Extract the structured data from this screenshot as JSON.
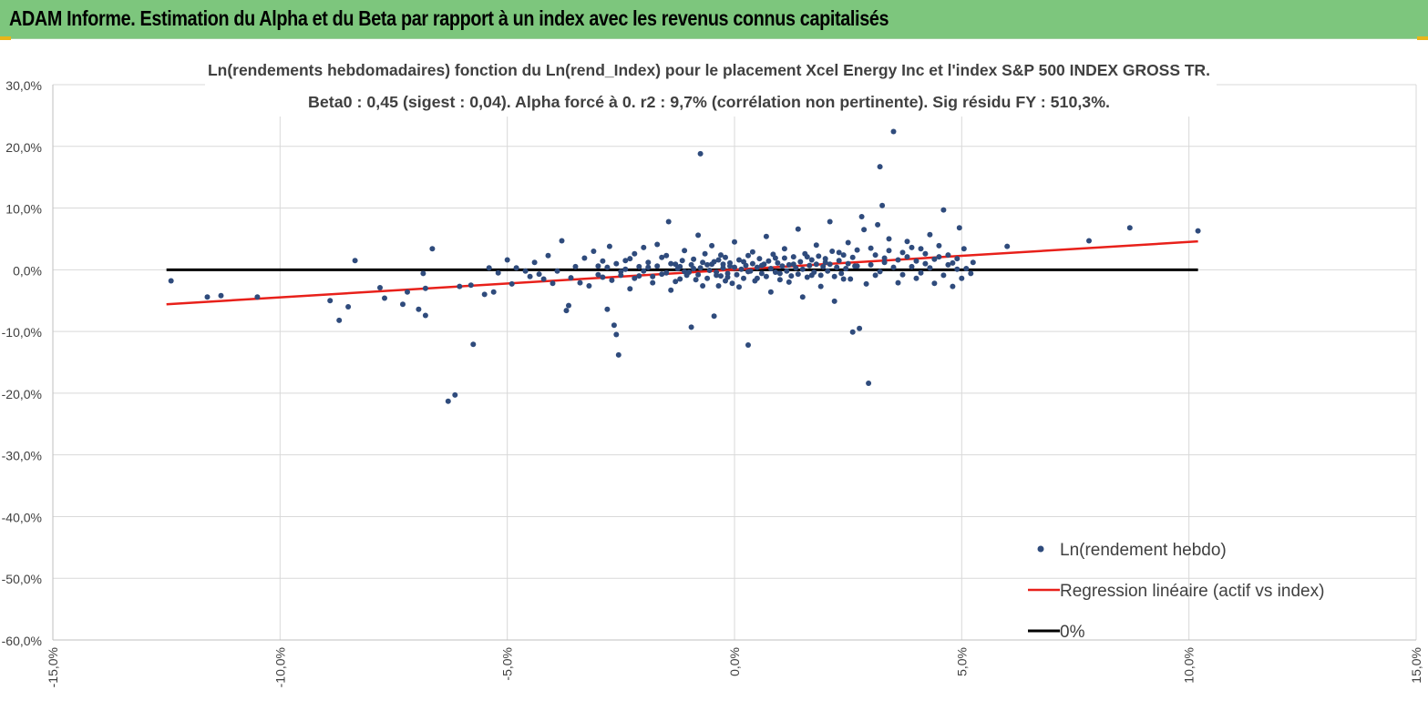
{
  "report_title": "ADAM Informe. Estimation du Alpha et du Beta par rapport à un index avec les revenus connus capitalisés",
  "colors": {
    "banner": "#7dc67d",
    "points": "#2f4b7c",
    "regression": "#e8201a",
    "zero_line": "#000000",
    "grid": "#d9d9d9"
  },
  "chart_data": {
    "type": "scatter",
    "title": "Ln(rendements hebdomadaires) fonction du Ln(rend_Index) pour le placement Xcel Energy Inc et l'index S&P 500 INDEX GROSS TR.",
    "subtitle": "Beta0 : 0,45 (sigest : 0,04).  Alpha forcé à 0. r2 : 9,7% (corrélation non pertinente). Sig résidu FY : 510,3%.",
    "xlim": [
      -15,
      15
    ],
    "ylim": [
      -60,
      30
    ],
    "x_ticks": [
      -15,
      -10,
      -5,
      0,
      5,
      10,
      15
    ],
    "y_ticks": [
      30,
      20,
      10,
      0,
      -10,
      -20,
      -30,
      -40,
      -50,
      -60
    ],
    "x_tick_labels": [
      "-15,0%",
      "-10,0%",
      "-5,0%",
      "0,0%",
      "5,0%",
      "10,0%",
      "15,0%"
    ],
    "y_tick_labels": [
      "30,0%",
      "20,0%",
      "10,0%",
      "0,0%",
      "-10,0%",
      "-20,0%",
      "-30,0%",
      "-40,0%",
      "-50,0%",
      "-60,0%"
    ],
    "grid": true,
    "legend_position": "bottom-right",
    "series": [
      {
        "name": "Ln(rendement hebdo)",
        "kind": "scatter",
        "points": [
          [
            -12.4,
            -1.8
          ],
          [
            -11.6,
            -4.4
          ],
          [
            -11.3,
            -4.2
          ],
          [
            -10.5,
            -4.4
          ],
          [
            -8.9,
            -5.0
          ],
          [
            -8.7,
            -8.2
          ],
          [
            -8.5,
            -6.0
          ],
          [
            -8.35,
            1.5
          ],
          [
            -7.8,
            -2.9
          ],
          [
            -7.7,
            -4.6
          ],
          [
            -7.3,
            -5.6
          ],
          [
            -7.2,
            -3.6
          ],
          [
            -6.95,
            -6.4
          ],
          [
            -6.85,
            -0.6
          ],
          [
            -6.8,
            -7.4
          ],
          [
            -6.8,
            -3.0
          ],
          [
            -6.65,
            3.4
          ],
          [
            -6.3,
            -21.3
          ],
          [
            -6.15,
            -20.3
          ],
          [
            -6.05,
            -2.7
          ],
          [
            -5.8,
            -2.5
          ],
          [
            -5.75,
            -12.1
          ],
          [
            -5.5,
            -4.0
          ],
          [
            -5.4,
            0.3
          ],
          [
            -5.3,
            -3.6
          ],
          [
            -5.2,
            -0.5
          ],
          [
            -5.0,
            1.6
          ],
          [
            -4.9,
            -2.3
          ],
          [
            -4.8,
            0.3
          ],
          [
            -4.6,
            -0.2
          ],
          [
            -4.5,
            -1.1
          ],
          [
            -4.4,
            1.2
          ],
          [
            -4.3,
            -0.7
          ],
          [
            -4.2,
            -1.5
          ],
          [
            -4.1,
            2.3
          ],
          [
            -4.0,
            -2.2
          ],
          [
            -3.9,
            -0.2
          ],
          [
            -3.8,
            4.7
          ],
          [
            -3.7,
            -6.6
          ],
          [
            -3.65,
            -5.8
          ],
          [
            -3.6,
            -1.3
          ],
          [
            -3.5,
            0.5
          ],
          [
            -3.4,
            -2.1
          ],
          [
            -3.3,
            1.9
          ],
          [
            -3.2,
            -2.6
          ],
          [
            -3.1,
            3.0
          ],
          [
            -3.0,
            -0.8
          ],
          [
            -2.9,
            1.4
          ],
          [
            -2.8,
            -6.4
          ],
          [
            -2.75,
            3.8
          ],
          [
            -2.65,
            -9.0
          ],
          [
            -2.6,
            -10.5
          ],
          [
            -2.55,
            -13.8
          ],
          [
            -2.5,
            -0.3
          ],
          [
            -2.4,
            1.5
          ],
          [
            -2.3,
            -3.1
          ],
          [
            -2.2,
            2.6
          ],
          [
            -2.1,
            -1.0
          ],
          [
            -2.0,
            3.6
          ],
          [
            -1.9,
            0.4
          ],
          [
            -1.8,
            -2.1
          ],
          [
            -1.7,
            4.1
          ],
          [
            -1.6,
            -0.7
          ],
          [
            -1.5,
            2.3
          ],
          [
            -1.45,
            7.8
          ],
          [
            -1.4,
            -3.3
          ],
          [
            -1.3,
            0.9
          ],
          [
            -1.2,
            -1.5
          ],
          [
            -1.1,
            3.1
          ],
          [
            -1.0,
            -0.4
          ],
          [
            -0.95,
            -9.3
          ],
          [
            -0.9,
            1.7
          ],
          [
            -0.8,
            5.6
          ],
          [
            -0.75,
            18.8
          ],
          [
            -0.7,
            -2.6
          ],
          [
            -0.6,
            0.8
          ],
          [
            -0.5,
            3.9
          ],
          [
            -0.45,
            -7.5
          ],
          [
            -0.4,
            -0.9
          ],
          [
            -0.3,
            2.4
          ],
          [
            -0.2,
            -1.8
          ],
          [
            -0.1,
            0.6
          ],
          [
            0.0,
            4.5
          ],
          [
            0.1,
            -2.8
          ],
          [
            0.2,
            1.3
          ],
          [
            0.3,
            -0.3
          ],
          [
            0.3,
            -12.2
          ],
          [
            0.4,
            2.9
          ],
          [
            0.5,
            -1.4
          ],
          [
            0.6,
            0.7
          ],
          [
            0.7,
            5.4
          ],
          [
            0.8,
            -3.6
          ],
          [
            0.9,
            1.9
          ],
          [
            1.0,
            -0.6
          ],
          [
            1.1,
            3.4
          ],
          [
            1.2,
            -2.0
          ],
          [
            1.3,
            0.9
          ],
          [
            1.4,
            6.6
          ],
          [
            1.5,
            -4.4
          ],
          [
            1.6,
            2.1
          ],
          [
            1.7,
            -0.9
          ],
          [
            1.8,
            4.0
          ],
          [
            1.9,
            -2.7
          ],
          [
            2.0,
            1.2
          ],
          [
            2.1,
            7.8
          ],
          [
            2.2,
            -5.1
          ],
          [
            2.3,
            2.8
          ],
          [
            2.4,
            -1.5
          ],
          [
            2.5,
            4.4
          ],
          [
            2.6,
            -10.1
          ],
          [
            2.7,
            0.6
          ],
          [
            2.75,
            -9.5
          ],
          [
            2.8,
            8.6
          ],
          [
            2.85,
            6.5
          ],
          [
            2.9,
            -2.3
          ],
          [
            2.95,
            -18.4
          ],
          [
            3.0,
            3.5
          ],
          [
            3.1,
            -0.9
          ],
          [
            3.15,
            7.3
          ],
          [
            3.2,
            16.7
          ],
          [
            3.25,
            10.4
          ],
          [
            3.3,
            1.9
          ],
          [
            3.4,
            5.0
          ],
          [
            3.5,
            22.4
          ],
          [
            3.6,
            -2.1
          ],
          [
            3.7,
            2.8
          ],
          [
            3.8,
            4.6
          ],
          [
            3.9,
            0.5
          ],
          [
            4.0,
            -1.4
          ],
          [
            4.1,
            3.4
          ],
          [
            4.2,
            1.0
          ],
          [
            4.3,
            5.7
          ],
          [
            4.4,
            -2.2
          ],
          [
            4.5,
            2.1
          ],
          [
            4.6,
            9.7
          ],
          [
            4.7,
            0.8
          ],
          [
            4.8,
            -2.7
          ],
          [
            4.9,
            1.8
          ],
          [
            4.95,
            6.8
          ],
          [
            5.0,
            -1.4
          ],
          [
            5.05,
            3.4
          ],
          [
            5.1,
            0.2
          ],
          [
            5.2,
            -0.6
          ],
          [
            5.25,
            1.2
          ],
          [
            6.0,
            3.8
          ],
          [
            7.8,
            4.7
          ],
          [
            8.7,
            6.8
          ],
          [
            10.2,
            6.3
          ],
          [
            -1.2,
            0.5
          ],
          [
            -1.1,
            -0.3
          ],
          [
            -0.9,
            0.2
          ],
          [
            -0.8,
            -0.8
          ],
          [
            -0.7,
            1.2
          ],
          [
            -0.6,
            -1.4
          ],
          [
            -0.5,
            0.9
          ],
          [
            -0.4,
            -0.4
          ],
          [
            -0.35,
            1.6
          ],
          [
            -0.3,
            -1.0
          ],
          [
            -0.25,
            0.3
          ],
          [
            -0.2,
            2.0
          ],
          [
            -0.15,
            -0.6
          ],
          [
            -0.1,
            1.1
          ],
          [
            -0.05,
            -2.2
          ],
          [
            0.0,
            0.4
          ],
          [
            0.05,
            -0.8
          ],
          [
            0.1,
            1.6
          ],
          [
            0.15,
            0.1
          ],
          [
            0.2,
            -1.4
          ],
          [
            0.25,
            0.7
          ],
          [
            0.3,
            2.3
          ],
          [
            0.35,
            -0.2
          ],
          [
            0.4,
            1.0
          ],
          [
            0.45,
            -1.8
          ],
          [
            0.5,
            0.4
          ],
          [
            0.55,
            1.8
          ],
          [
            0.6,
            -0.6
          ],
          [
            0.65,
            0.9
          ],
          [
            0.7,
            -1.1
          ],
          [
            0.75,
            1.4
          ],
          [
            0.8,
            0.2
          ],
          [
            0.85,
            2.5
          ],
          [
            0.9,
            -0.4
          ],
          [
            0.95,
            1.1
          ],
          [
            1.0,
            -1.6
          ],
          [
            1.05,
            0.6
          ],
          [
            1.1,
            1.9
          ],
          [
            1.15,
            -0.2
          ],
          [
            1.2,
            0.8
          ],
          [
            1.25,
            -1.0
          ],
          [
            1.3,
            2.1
          ],
          [
            1.35,
            0.3
          ],
          [
            1.4,
            -0.7
          ],
          [
            1.45,
            1.3
          ],
          [
            1.5,
            0.1
          ],
          [
            1.55,
            2.6
          ],
          [
            1.6,
            -1.2
          ],
          [
            1.65,
            0.7
          ],
          [
            1.7,
            1.6
          ],
          [
            1.75,
            -0.4
          ],
          [
            1.8,
            0.9
          ],
          [
            1.85,
            2.2
          ],
          [
            1.9,
            -0.9
          ],
          [
            1.95,
            0.5
          ],
          [
            2.0,
            1.8
          ],
          [
            2.05,
            -0.2
          ],
          [
            2.1,
            0.9
          ],
          [
            2.15,
            3.0
          ],
          [
            2.2,
            -1.1
          ],
          [
            2.25,
            0.4
          ],
          [
            2.3,
            1.5
          ],
          [
            2.35,
            -0.6
          ],
          [
            2.4,
            2.4
          ],
          [
            2.45,
            0.2
          ],
          [
            2.5,
            1.0
          ],
          [
            2.55,
            -1.5
          ],
          [
            2.6,
            2.0
          ],
          [
            2.65,
            0.6
          ],
          [
            2.7,
            3.2
          ],
          [
            -2.0,
            -0.2
          ],
          [
            -1.9,
            1.2
          ],
          [
            -1.8,
            -1.1
          ],
          [
            -1.7,
            0.6
          ],
          [
            -1.6,
            2.0
          ],
          [
            -1.5,
            -0.5
          ],
          [
            -1.4,
            1.0
          ],
          [
            -1.3,
            -1.9
          ],
          [
            -1.25,
            0.2
          ],
          [
            -1.15,
            1.5
          ],
          [
            -1.05,
            -0.9
          ],
          [
            -0.95,
            0.8
          ],
          [
            -0.85,
            -1.6
          ],
          [
            -0.75,
            0.3
          ],
          [
            -0.65,
            2.6
          ],
          [
            -0.55,
            -0.1
          ],
          [
            -0.45,
            1.3
          ],
          [
            -0.35,
            -2.6
          ],
          [
            -0.25,
            0.9
          ],
          [
            -0.15,
            -1.2
          ],
          [
            -3.0,
            0.6
          ],
          [
            -2.9,
            -1.2
          ],
          [
            -2.8,
            0.4
          ],
          [
            -2.7,
            -1.7
          ],
          [
            -2.6,
            1.0
          ],
          [
            -2.5,
            -0.9
          ],
          [
            -2.4,
            0.1
          ],
          [
            -2.3,
            1.8
          ],
          [
            -2.2,
            -1.4
          ],
          [
            -2.1,
            0.5
          ],
          [
            3.0,
            0.8
          ],
          [
            3.1,
            2.4
          ],
          [
            3.2,
            -0.3
          ],
          [
            3.3,
            1.2
          ],
          [
            3.4,
            3.1
          ],
          [
            3.5,
            0.4
          ],
          [
            3.6,
            1.6
          ],
          [
            3.7,
            -0.8
          ],
          [
            3.8,
            2.1
          ],
          [
            3.9,
            3.6
          ],
          [
            4.0,
            1.4
          ],
          [
            4.1,
            -0.5
          ],
          [
            4.2,
            2.6
          ],
          [
            4.3,
            0.3
          ],
          [
            4.4,
            1.7
          ],
          [
            4.5,
            3.9
          ],
          [
            4.6,
            -0.9
          ],
          [
            4.7,
            2.4
          ],
          [
            4.8,
            1.1
          ],
          [
            4.9,
            0.1
          ]
        ]
      },
      {
        "name": "Regression linéaire (actif vs index)",
        "kind": "line",
        "x": [
          -12.5,
          10.2
        ],
        "y": [
          -5.6,
          4.6
        ]
      },
      {
        "name": "0%",
        "kind": "line",
        "x": [
          -12.5,
          10.2
        ],
        "y": [
          0,
          0
        ]
      }
    ]
  }
}
